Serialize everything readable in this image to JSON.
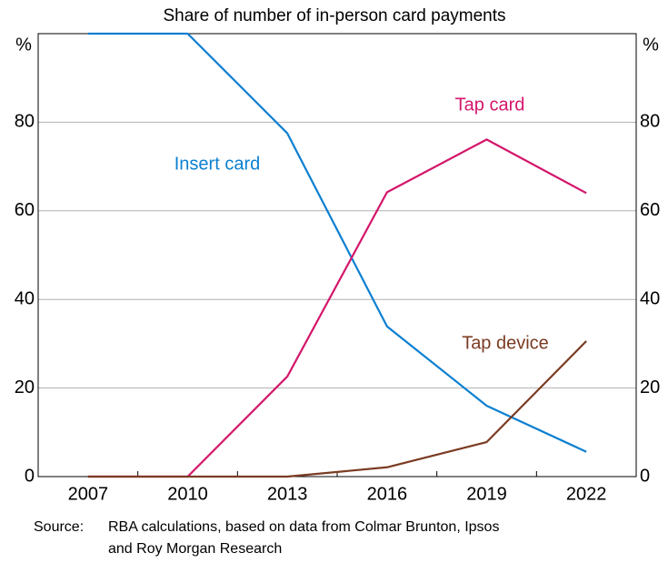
{
  "chart_data": {
    "type": "line",
    "subtitle": "Share of number of in-person card payments",
    "y_unit": "%",
    "x": [
      2007,
      2010,
      2013,
      2016,
      2019,
      2022
    ],
    "xlim": [
      2005.5,
      2023.5
    ],
    "xticks": [
      2007,
      2010,
      2013,
      2016,
      2019,
      2022
    ],
    "xminorticks": [
      2008.5,
      2011.5,
      2014.5,
      2017.5,
      2020.5
    ],
    "ylim": [
      0,
      100
    ],
    "yticks": [
      0,
      20,
      40,
      60,
      80
    ],
    "y2lim": [
      0,
      100
    ],
    "y2ticks": [
      0,
      20,
      40,
      60,
      80
    ],
    "grid": true,
    "series": [
      {
        "name": "Insert card",
        "color": "#0b7fd1",
        "values": [
          100,
          100,
          77.5,
          33.9,
          16.0,
          5.6
        ]
      },
      {
        "name": "Tap card",
        "color": "#d4166b",
        "values": [
          0,
          0,
          22.6,
          64.2,
          76.1,
          64.0
        ]
      },
      {
        "name": "Tap device",
        "color": "#7a3b22",
        "values": [
          0,
          0,
          0,
          2.1,
          7.8,
          30.6
        ]
      }
    ],
    "source_label": "Source:",
    "source_lines": [
      "RBA calculations, based on data from Colmar Brunton, Ipsos",
      "and Roy Morgan Research"
    ]
  }
}
